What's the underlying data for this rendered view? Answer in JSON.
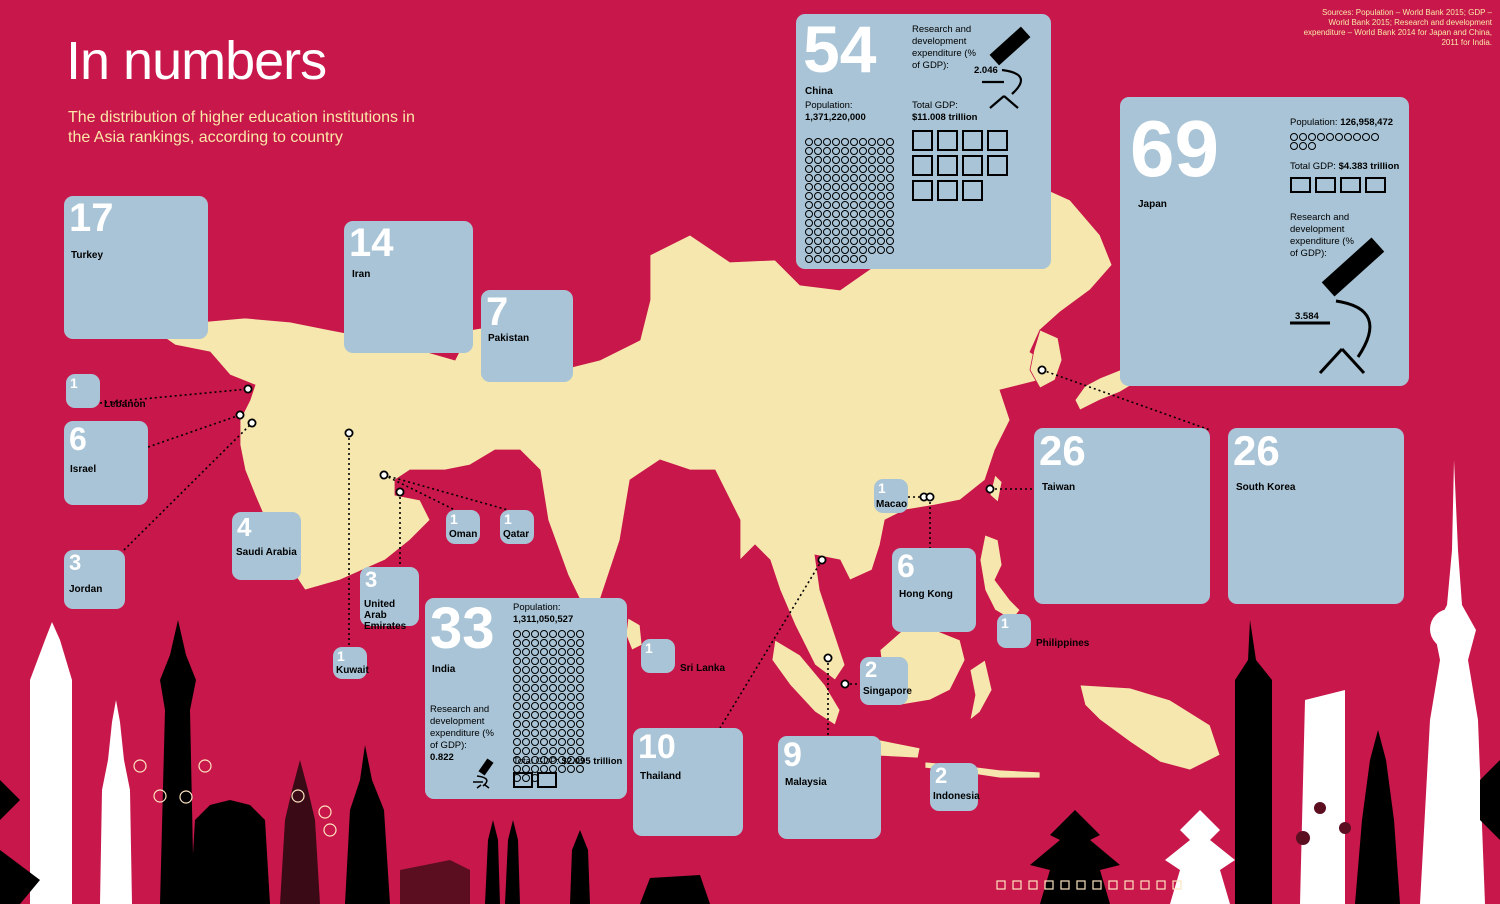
{
  "header": {
    "title": "In numbers",
    "subtitle": "The distribution of higher education institutions in the Asia rankings, according to country",
    "sources": "Sources: Population – World Bank 2015; GDP – World Bank 2015; Research and development expenditure – World Bank 2014 for Japan and China, 2011 for India."
  },
  "colors": {
    "background": "#c8174a",
    "land": "#f6e7ae",
    "box": "#a8c4d6",
    "heading_text": "#fbe7a8"
  },
  "countries": {
    "turkey": {
      "count": "17",
      "name": "Turkey"
    },
    "iran": {
      "count": "14",
      "name": "Iran"
    },
    "pakistan": {
      "count": "7",
      "name": "Pakistan"
    },
    "lebanon": {
      "count": "1",
      "name": "Lebanon"
    },
    "israel": {
      "count": "6",
      "name": "Israel"
    },
    "jordan": {
      "count": "3",
      "name": "Jordan"
    },
    "saudi_arabia": {
      "count": "4",
      "name": "Saudi Arabia"
    },
    "oman": {
      "count": "1",
      "name": "Oman"
    },
    "qatar": {
      "count": "1",
      "name": "Qatar"
    },
    "uae": {
      "count": "3",
      "name": "United Arab Emirates"
    },
    "kuwait": {
      "count": "1",
      "name": "Kuwait"
    },
    "india": {
      "count": "33",
      "name": "India",
      "population_label": "Population:",
      "population": "1,311,050,527",
      "rd_label": "Research and development expenditure (% of GDP):",
      "rd_value": "0.822",
      "gdp_label": "Total GDP:",
      "gdp_value": "$2.095 trillion"
    },
    "sri_lanka": {
      "count": "1",
      "name": "Sri Lanka"
    },
    "thailand": {
      "count": "10",
      "name": "Thailand"
    },
    "malaysia": {
      "count": "9",
      "name": "Malaysia"
    },
    "singapore": {
      "count": "2",
      "name": "Singapore"
    },
    "indonesia": {
      "count": "2",
      "name": "Indonesia"
    },
    "macao": {
      "count": "1",
      "name": "Macao"
    },
    "hong_kong": {
      "count": "6",
      "name": "Hong Kong"
    },
    "philippines": {
      "count": "1",
      "name": "Philippines"
    },
    "china": {
      "count": "54",
      "name": "China",
      "rd_label": "Research and development expenditure (% of GDP):",
      "rd_value": "2.046",
      "population_label": "Population:",
      "population": "1,371,220,000",
      "gdp_label": "Total GDP:",
      "gdp_value": "$11.008 trillion"
    },
    "japan": {
      "count": "69",
      "name": "Japan",
      "population_label": "Population:",
      "population": "126,958,472",
      "gdp_label": "Total GDP:",
      "gdp_value": "$4.383 trillion",
      "rd_label": "Research and development expenditure (% of GDP):",
      "rd_value": "3.584"
    },
    "taiwan": {
      "count": "26",
      "name": "Taiwan"
    },
    "south_korea": {
      "count": "26",
      "name": "South Korea"
    }
  },
  "pictograms": {
    "china": {
      "population_circles": 137,
      "gdp_squares": 11
    },
    "india": {
      "population_circles": 131,
      "gdp_squares": 2
    },
    "japan": {
      "population_circles": 13,
      "gdp_squares": 4
    }
  }
}
